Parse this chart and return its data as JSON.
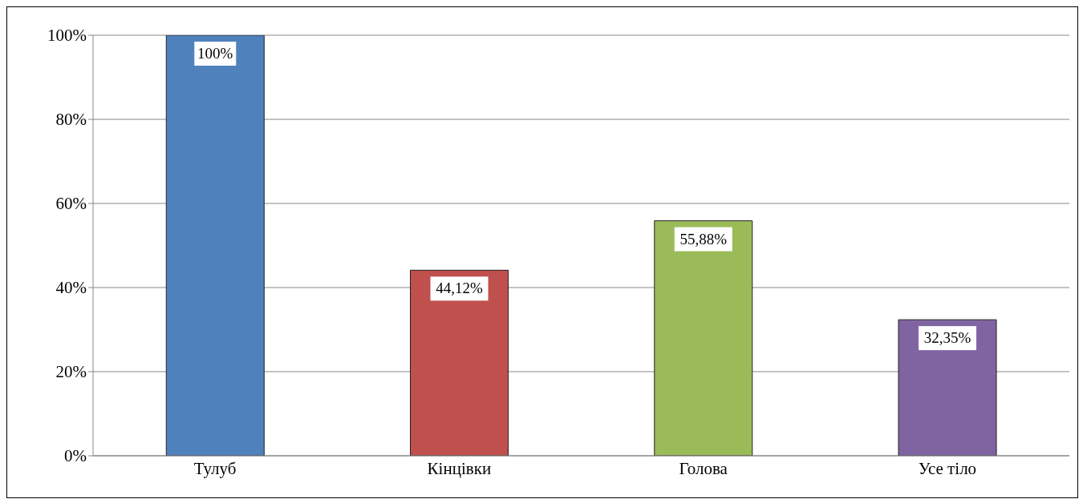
{
  "chart_data": {
    "type": "bar",
    "categories": [
      "Тулуб",
      "Кінцівки",
      "Голова",
      "Усе тіло"
    ],
    "values": [
      100,
      44.12,
      55.88,
      32.35
    ],
    "value_labels": [
      "100%",
      "44,12%",
      "55,88%",
      "32,35%"
    ],
    "colors": [
      "#4f81bd",
      "#c0504d",
      "#9bbb59",
      "#8064a2"
    ],
    "ylim": [
      0,
      100
    ],
    "yticks": [
      {
        "value": 0,
        "label": "0%"
      },
      {
        "value": 20,
        "label": "20%"
      },
      {
        "value": 40,
        "label": "40%"
      },
      {
        "value": 60,
        "label": "60%"
      },
      {
        "value": 80,
        "label": "80%"
      },
      {
        "value": 100,
        "label": "100%"
      }
    ],
    "grid": "y"
  }
}
